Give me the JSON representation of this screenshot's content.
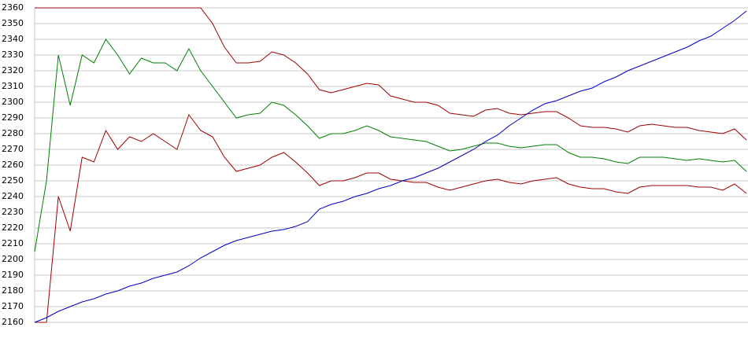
{
  "chart_data": {
    "type": "line",
    "ylim": [
      2160,
      2360
    ],
    "yticks": [
      2160,
      2170,
      2180,
      2190,
      2200,
      2210,
      2220,
      2230,
      2240,
      2250,
      2260,
      2270,
      2280,
      2290,
      2300,
      2310,
      2320,
      2330,
      2340,
      2350,
      2360
    ],
    "grid": true,
    "series": [
      {
        "color": "#a00000",
        "values": [
          2360,
          2360,
          2360,
          2360,
          2360,
          2360,
          2360,
          2360,
          2360,
          2360,
          2360,
          2360,
          2360,
          2360,
          2360,
          2350,
          2335,
          2325,
          2325,
          2326,
          2332,
          2330,
          2325,
          2318,
          2308,
          2306,
          2308,
          2310,
          2312,
          2311,
          2304,
          2302,
          2300,
          2300,
          2298,
          2293,
          2292,
          2291,
          2295,
          2296,
          2293,
          2292,
          2293,
          2294,
          2294,
          2290,
          2285,
          2284,
          2284,
          2283,
          2281,
          2285,
          2286,
          2285,
          2284,
          2284,
          2282,
          2281,
          2280,
          2283,
          2276
        ]
      },
      {
        "color": "#008000",
        "values": [
          2205,
          2250,
          2330,
          2298,
          2330,
          2325,
          2340,
          2330,
          2318,
          2328,
          2325,
          2325,
          2320,
          2334,
          2320,
          2310,
          2300,
          2290,
          2292,
          2293,
          2300,
          2298,
          2292,
          2285,
          2277,
          2280,
          2280,
          2282,
          2285,
          2282,
          2278,
          2277,
          2276,
          2275,
          2272,
          2269,
          2270,
          2272,
          2274,
          2274,
          2272,
          2271,
          2272,
          2273,
          2273,
          2268,
          2265,
          2265,
          2264,
          2262,
          2261,
          2265,
          2265,
          2265,
          2264,
          2263,
          2264,
          2263,
          2262,
          2263,
          2256
        ]
      },
      {
        "color": "#a00000",
        "values": [
          2160,
          2160,
          2240,
          2218,
          2265,
          2262,
          2282,
          2270,
          2278,
          2275,
          2280,
          2275,
          2270,
          2292,
          2282,
          2278,
          2265,
          2256,
          2258,
          2260,
          2265,
          2268,
          2262,
          2255,
          2247,
          2250,
          2250,
          2252,
          2255,
          2255,
          2251,
          2250,
          2249,
          2249,
          2246,
          2244,
          2246,
          2248,
          2250,
          2251,
          2249,
          2248,
          2250,
          2251,
          2252,
          2248,
          2246,
          2245,
          2245,
          2243,
          2242,
          2246,
          2247,
          2247,
          2247,
          2247,
          2246,
          2246,
          2244,
          2248,
          2242
        ]
      },
      {
        "color": "#0000c0",
        "values": [
          2160,
          2163,
          2167,
          2170,
          2173,
          2175,
          2178,
          2180,
          2183,
          2185,
          2188,
          2190,
          2192,
          2196,
          2201,
          2205,
          2209,
          2212,
          2214,
          2216,
          2218,
          2219,
          2221,
          2224,
          2232,
          2235,
          2237,
          2240,
          2242,
          2245,
          2247,
          2250,
          2252,
          2255,
          2258,
          2262,
          2266,
          2270,
          2275,
          2279,
          2285,
          2290,
          2295,
          2299,
          2301,
          2304,
          2307,
          2309,
          2313,
          2316,
          2320,
          2323,
          2326,
          2329,
          2332,
          2335,
          2339,
          2342,
          2347,
          2352,
          2358
        ]
      }
    ]
  }
}
